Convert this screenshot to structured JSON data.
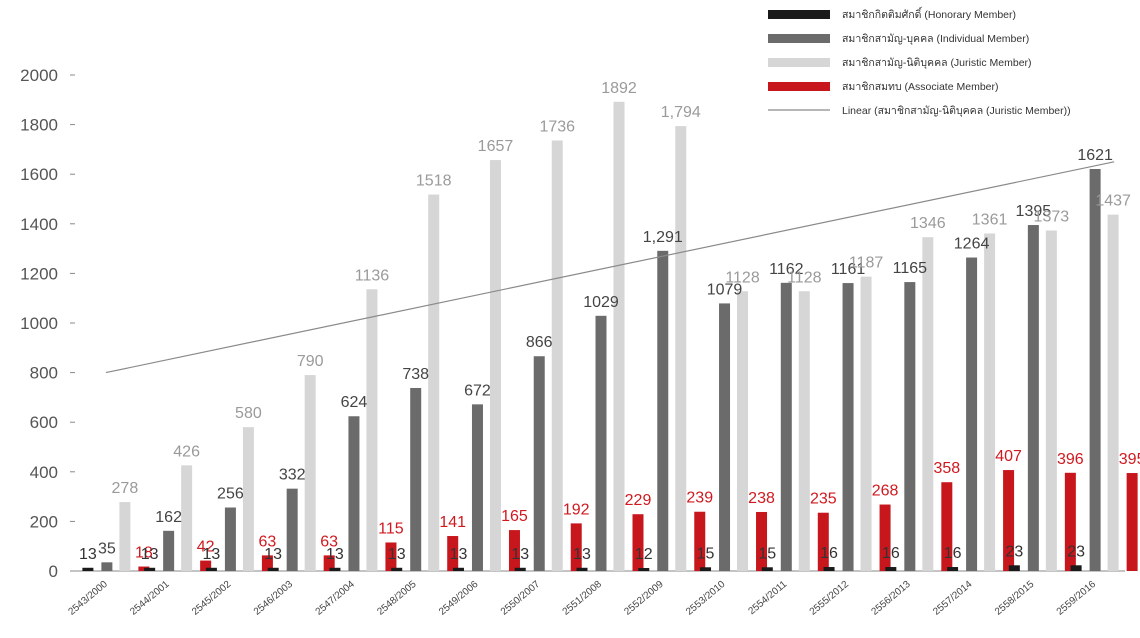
{
  "chart_data": {
    "type": "bar",
    "title": "",
    "xlabel": "",
    "ylabel": "",
    "ylim": [
      0,
      2000
    ],
    "yticks": [
      0,
      200,
      400,
      600,
      800,
      1000,
      1200,
      1400,
      1600,
      1800,
      2000
    ],
    "categories": [
      "2543/2000",
      "2544/2001",
      "2545/2002",
      "2546/2003",
      "2547/2004",
      "2548/2005",
      "2549/2006",
      "2550/2007",
      "2551/2008",
      "2552/2009",
      "2553/2010",
      "2554/2011",
      "2555/2012",
      "2556/2013",
      "2557/2014",
      "2558/2015",
      "2559/2016"
    ],
    "series": [
      {
        "name": "สมาชิกกิตติมศักดิ์ (Honorary Member)",
        "color": "#1a1a1a",
        "label_color": "#333333",
        "values": [
          13,
          13,
          13,
          13,
          13,
          13,
          13,
          13,
          13,
          12,
          15,
          15,
          16,
          16,
          16,
          23,
          23
        ],
        "labels": [
          "13",
          "13",
          "13",
          "13",
          "13",
          "13",
          "13",
          "13",
          "13",
          "12",
          "15",
          "15",
          "16",
          "16",
          "16",
          "23",
          "23"
        ]
      },
      {
        "name": "สมาชิกสามัญ-บุคคล (Individual Member)",
        "color": "#6b6b6b",
        "label_color": "#444444",
        "values": [
          35,
          162,
          256,
          332,
          624,
          738,
          672,
          866,
          1029,
          1291,
          1079,
          1162,
          1161,
          1165,
          1264,
          1395,
          1621
        ],
        "labels": [
          "35",
          "162",
          "256",
          "332",
          "624",
          "738",
          "672",
          "866",
          "1029",
          "1,291",
          "1079",
          "1162",
          "1161",
          "1165",
          "1264",
          "1395",
          "1621"
        ]
      },
      {
        "name": "สมาชิกสามัญ-นิติบุคคล (Juristic Member)",
        "color": "#d6d6d6",
        "label_color": "#9a9a9a",
        "values": [
          278,
          426,
          580,
          790,
          1136,
          1518,
          1657,
          1736,
          1892,
          1794,
          1128,
          1128,
          1187,
          1346,
          1361,
          1373,
          1437
        ],
        "labels": [
          "278",
          "426",
          "580",
          "790",
          "1136",
          "1518",
          "1657",
          "1736",
          "1892",
          "1,794",
          "1128",
          "1128",
          "1187",
          "1346",
          "1361",
          "1373",
          "1437"
        ]
      },
      {
        "name": "สมาชิกสมทบ (Associate Member)",
        "color": "#c8161d",
        "label_color": "#d0191f",
        "values": [
          18,
          42,
          63,
          63,
          115,
          141,
          165,
          192,
          229,
          239,
          238,
          235,
          268,
          358,
          407,
          396,
          395
        ],
        "labels": [
          "18",
          "42",
          "63",
          "63",
          "115",
          "141",
          "165",
          "192",
          "229",
          "239",
          "238",
          "235",
          "268",
          "358",
          "407",
          "396",
          "395"
        ]
      }
    ],
    "trendline": {
      "name": "Linear (สมาชิกสามัญ-นิติบุคคล (Juristic Member))",
      "series": "สมาชิกสามัญ-นิติบุคคล (Juristic Member)",
      "start_value": 800,
      "end_value": 1650,
      "color": "#8a8a8a"
    },
    "legend_position": "top-right",
    "grid": false
  }
}
